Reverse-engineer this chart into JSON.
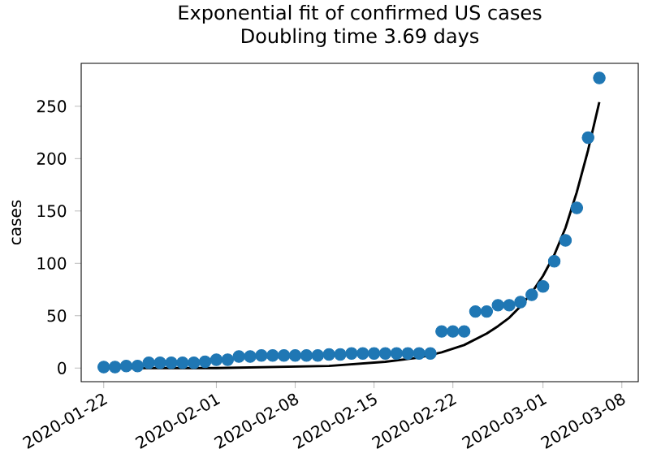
{
  "chart_data": {
    "type": "scatter",
    "title": "Exponential fit of confirmed US cases",
    "subtitle": "Doubling time 3.69 days",
    "ylabel": "cases",
    "x": [
      "2020-01-22",
      "2020-01-23",
      "2020-01-24",
      "2020-01-25",
      "2020-01-26",
      "2020-01-27",
      "2020-01-28",
      "2020-01-29",
      "2020-01-30",
      "2020-01-31",
      "2020-02-01",
      "2020-02-02",
      "2020-02-03",
      "2020-02-04",
      "2020-02-05",
      "2020-02-06",
      "2020-02-07",
      "2020-02-08",
      "2020-02-09",
      "2020-02-10",
      "2020-02-11",
      "2020-02-12",
      "2020-02-13",
      "2020-02-14",
      "2020-02-15",
      "2020-02-16",
      "2020-02-17",
      "2020-02-18",
      "2020-02-19",
      "2020-02-20",
      "2020-02-21",
      "2020-02-22",
      "2020-02-23",
      "2020-02-24",
      "2020-02-25",
      "2020-02-26",
      "2020-02-27",
      "2020-02-28",
      "2020-02-29",
      "2020-03-01",
      "2020-03-02",
      "2020-03-03",
      "2020-03-04",
      "2020-03-05",
      "2020-03-06"
    ],
    "series": [
      {
        "color": "#1f77b4",
        "marker": "circle",
        "values": [
          1,
          1,
          2,
          2,
          5,
          5,
          5,
          5,
          5,
          6,
          8,
          8,
          11,
          11,
          12,
          12,
          12,
          12,
          12,
          12,
          13,
          13,
          14,
          14,
          14,
          14,
          14,
          14,
          14,
          14,
          35,
          35,
          35,
          54,
          54,
          60,
          60,
          63,
          70,
          78,
          102,
          122,
          153,
          220,
          277
        ]
      },
      {
        "type": "line",
        "color": "#000000",
        "marker": "none",
        "line_style": "solid",
        "x": [
          "2020-01-22",
          "2020-02-01",
          "2020-02-11",
          "2020-02-16",
          "2020-02-19",
          "2020-02-21",
          "2020-02-23",
          "2020-02-25",
          "2020-02-26",
          "2020-02-27",
          "2020-02-28",
          "2020-02-29",
          "2020-03-01",
          "2020-03-02",
          "2020-03-03",
          "2020-03-04",
          "2020-03-05",
          "2020-03-06"
        ],
        "values": [
          0,
          0,
          2,
          6,
          10,
          15,
          22,
          33,
          40,
          48,
          59,
          72,
          88,
          108,
          134,
          168,
          208,
          254
        ]
      }
    ],
    "xlim": [
      "2020-01-20",
      "2020-03-09T11:00"
    ],
    "xticks": [
      {
        "value": "2020-01-22",
        "label": "2020-01-22"
      },
      {
        "value": "2020-02-01",
        "label": "2020-02-01"
      },
      {
        "value": "2020-02-08",
        "label": "2020-02-08"
      },
      {
        "value": "2020-02-15",
        "label": "2020-02-15"
      },
      {
        "value": "2020-02-22",
        "label": "2020-02-22"
      },
      {
        "value": "2020-03-01",
        "label": "2020-03-01"
      },
      {
        "value": "2020-03-08",
        "label": "2020-03-08"
      }
    ],
    "ylim": [
      -13,
      291
    ],
    "yticks": [
      0,
      50,
      100,
      150,
      200,
      250
    ],
    "grid": false
  }
}
